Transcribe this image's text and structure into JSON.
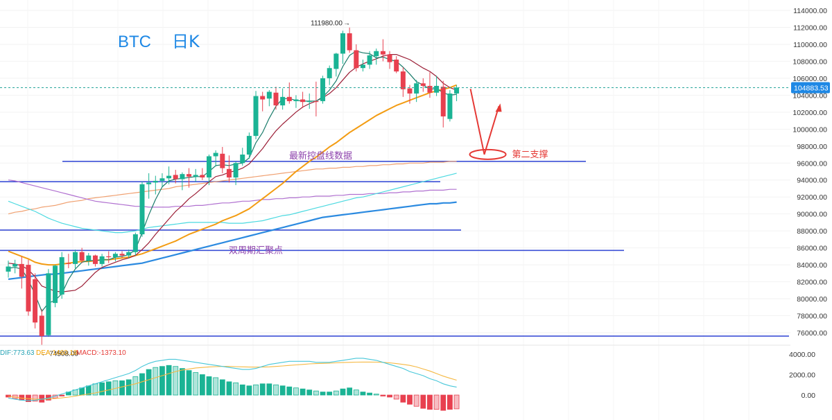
{
  "title": {
    "symbol": "BTC",
    "timeframe": "日K"
  },
  "colors": {
    "up": "#1ab394",
    "down": "#e8404f",
    "ma_short": "#1a7c6b",
    "ma_mid": "#9b1d35",
    "ma_orange": "#f39c12",
    "ma_light": "#f0a070",
    "ma_purple": "#b070d0",
    "ma_cyan": "#4ad9e0",
    "ma_blue": "#2b8ae0",
    "hline": "#3b4fd6",
    "support": "#e53935",
    "price_tag": "#1e88e5",
    "macd_dif": "#47c7d9",
    "macd_dea": "#f5b841"
  },
  "annotations": {
    "high_label": "111980.00",
    "low_label": "74508.00",
    "current_price": "104883.53",
    "support2": "第二支撑",
    "latest_control": "最新控盘线数据",
    "biweekly_cluster": "双周期汇聚点"
  },
  "macd": {
    "dif_label": "DIF:773.63",
    "dea_label": "DEA:1460.18",
    "macd_label": "MACD:-1373.10"
  },
  "chart_data": {
    "type": "candlestick",
    "y_axis": {
      "ticks": [
        114000,
        112000,
        110000,
        108000,
        106000,
        104000,
        102000,
        100000,
        98000,
        96000,
        94000,
        92000,
        90000,
        88000,
        86000,
        84000,
        82000,
        80000,
        78000,
        76000
      ],
      "range": [
        75000,
        115000
      ]
    },
    "macd_axis": {
      "ticks": [
        "4000.00",
        "2000.00",
        "0.00"
      ],
      "values": [
        4000,
        2000,
        0
      ],
      "range": [
        -1800,
        5000
      ]
    },
    "candles": [
      [
        83200,
        84500,
        82500,
        83800
      ],
      [
        83800,
        84600,
        83000,
        84100
      ],
      [
        84100,
        85000,
        81200,
        82600
      ],
      [
        84000,
        84600,
        78000,
        78500
      ],
      [
        82300,
        83000,
        76500,
        77200
      ],
      [
        78000,
        78800,
        74508,
        75600
      ],
      [
        75700,
        83500,
        75500,
        83000
      ],
      [
        79500,
        84000,
        79000,
        83900
      ],
      [
        80500,
        85500,
        80000,
        84900
      ],
      [
        84200,
        85300,
        83600,
        84100
      ],
      [
        84100,
        85800,
        83600,
        85500
      ],
      [
        85500,
        86000,
        84200,
        84500
      ],
      [
        84500,
        85400,
        83900,
        85100
      ],
      [
        85100,
        85200,
        83800,
        84100
      ],
      [
        84100,
        85300,
        83800,
        85000
      ],
      [
        85000,
        85600,
        84200,
        84900
      ],
      [
        84900,
        85500,
        84400,
        85300
      ],
      [
        85300,
        85600,
        84800,
        85100
      ],
      [
        85100,
        85800,
        84800,
        85500
      ],
      [
        85500,
        87800,
        85100,
        87600
      ],
      [
        87600,
        93800,
        87300,
        93500
      ],
      [
        93500,
        94800,
        91800,
        93700
      ],
      [
        93700,
        94500,
        92300,
        93900
      ],
      [
        93900,
        94800,
        93200,
        94200
      ],
      [
        94200,
        95600,
        93500,
        94500
      ],
      [
        94600,
        95200,
        93600,
        94100
      ],
      [
        94100,
        94900,
        92800,
        94700
      ],
      [
        94700,
        95400,
        93100,
        94400
      ],
      [
        94400,
        95300,
        93800,
        94600
      ],
      [
        94600,
        95400,
        94000,
        94300
      ],
      [
        94300,
        97000,
        93400,
        96800
      ],
      [
        96800,
        97500,
        95600,
        97200
      ],
      [
        97100,
        97900,
        94800,
        95400
      ],
      [
        95300,
        96900,
        93700,
        94300
      ],
      [
        94300,
        96200,
        93400,
        96000
      ],
      [
        96000,
        97800,
        95700,
        97000
      ],
      [
        97000,
        99600,
        96500,
        99200
      ],
      [
        99200,
        104500,
        98800,
        103900
      ],
      [
        103900,
        104400,
        102100,
        103500
      ],
      [
        103600,
        104600,
        102700,
        104400
      ],
      [
        104300,
        105000,
        102300,
        102800
      ],
      [
        102800,
        104800,
        102300,
        103800
      ],
      [
        103800,
        105500,
        103000,
        103300
      ],
      [
        103300,
        104000,
        102500,
        103500
      ],
      [
        103500,
        104400,
        102500,
        103200
      ],
      [
        103200,
        104200,
        102400,
        103300
      ],
      [
        103300,
        105600,
        101500,
        103200
      ],
      [
        103300,
        106300,
        103000,
        106000
      ],
      [
        106000,
        107500,
        105200,
        107200
      ],
      [
        107100,
        109000,
        106200,
        108900
      ],
      [
        108900,
        111600,
        107700,
        111300
      ],
      [
        111300,
        111980,
        109000,
        109300
      ],
      [
        109300,
        110000,
        106800,
        107200
      ],
      [
        107200,
        108200,
        106800,
        107600
      ],
      [
        107600,
        109200,
        107100,
        108700
      ],
      [
        108600,
        109500,
        107600,
        109200
      ],
      [
        109200,
        110600,
        108000,
        108800
      ],
      [
        108800,
        109200,
        107100,
        107900
      ],
      [
        108200,
        108600,
        106600,
        106800
      ],
      [
        106800,
        107300,
        103800,
        104700
      ],
      [
        104800,
        105200,
        103000,
        104200
      ],
      [
        104200,
        105800,
        103200,
        105400
      ],
      [
        105400,
        106000,
        104400,
        105100
      ],
      [
        105100,
        106700,
        103700,
        104300
      ],
      [
        104300,
        106300,
        103900,
        105100
      ],
      [
        105000,
        105700,
        100200,
        101500
      ],
      [
        101200,
        104600,
        100900,
        104200
      ],
      [
        104200,
        105200,
        103300,
        104900
      ]
    ],
    "ma_short": [
      83600,
      83700,
      83500,
      82200,
      80500,
      78500,
      79500,
      79800,
      80600,
      82300,
      83500,
      84300,
      84500,
      84500,
      84600,
      84600,
      84900,
      85000,
      85200,
      85800,
      87800,
      89900,
      91700,
      93200,
      93900,
      94100,
      94200,
      94300,
      94400,
      94400,
      95000,
      95700,
      95800,
      95700,
      95900,
      96000,
      96600,
      98400,
      99600,
      101300,
      102700,
      103600,
      103600,
      103400,
      103300,
      103300,
      103300,
      103800,
      104600,
      105700,
      107400,
      108700,
      109200,
      109000,
      108900,
      108400,
      108500,
      108200,
      108000,
      107300,
      106500,
      105600,
      105200,
      104700,
      104800,
      104300,
      104000,
      104100
    ],
    "ma_mid": [
      84200,
      84100,
      83900,
      83400,
      82600,
      81500,
      81200,
      80900,
      80800,
      80900,
      81000,
      81500,
      82300,
      83100,
      83700,
      84000,
      84300,
      84600,
      84800,
      85100,
      85800,
      86600,
      87600,
      88500,
      89400,
      90300,
      91000,
      91800,
      92400,
      93100,
      93800,
      94400,
      94600,
      94900,
      95100,
      95400,
      95900,
      96800,
      97700,
      98800,
      99800,
      100600,
      101300,
      102000,
      102600,
      103000,
      103300,
      103700,
      104200,
      104900,
      105800,
      106700,
      107300,
      107700,
      108000,
      108300,
      108600,
      108800,
      108800,
      108500,
      108200,
      107700,
      107200,
      106800,
      106200,
      105400,
      104900,
      104600
    ],
    "ma_orange": [
      85600,
      85300,
      85000,
      84700,
      84300,
      84100,
      84000,
      84000,
      84100,
      84200,
      84300,
      84400,
      84400,
      84500,
      84600,
      84600,
      84700,
      84800,
      84900,
      85100,
      85300,
      85600,
      85900,
      86200,
      86500,
      86800,
      87200,
      87600,
      87900,
      88200,
      88500,
      88800,
      89200,
      89500,
      89800,
      90200,
      90600,
      91200,
      91800,
      92400,
      93000,
      93600,
      94300,
      95000,
      95600,
      96200,
      96700,
      97300,
      97900,
      98400,
      99000,
      99600,
      100100,
      100600,
      101100,
      101600,
      102000,
      102400,
      102800,
      103100,
      103400,
      103700,
      104000,
      104300,
      104500,
      104700,
      104900,
      105200
    ],
    "ma_light": [
      90000,
      90200,
      90300,
      90500,
      90600,
      90800,
      90900,
      91000,
      91200,
      91400,
      91500,
      91600,
      91800,
      91900,
      92000,
      92100,
      92200,
      92300,
      92400,
      92500,
      92600,
      92700,
      92800,
      92900,
      93000,
      93200,
      93300,
      93400,
      93500,
      93600,
      93700,
      93800,
      93900,
      94000,
      94100,
      94200,
      94300,
      94400,
      94500,
      94600,
      94700,
      94800,
      94900,
      95000,
      95100,
      95200,
      95300,
      95300,
      95400,
      95400,
      95500,
      95500,
      95600,
      95600,
      95700,
      95700,
      95800,
      95800,
      95900,
      95900,
      96000,
      96000,
      96000,
      96100,
      96100,
      96100,
      96200,
      96200
    ],
    "ma_purple": [
      94000,
      93900,
      93700,
      93500,
      93300,
      93100,
      92900,
      92700,
      92500,
      92300,
      92100,
      91900,
      91700,
      91500,
      91400,
      91300,
      91200,
      91100,
      91000,
      90900,
      90900,
      90800,
      90800,
      90800,
      90800,
      90900,
      90900,
      90900,
      91000,
      91000,
      91100,
      91200,
      91300,
      91300,
      91400,
      91500,
      91500,
      91600,
      91700,
      91700,
      91800,
      91800,
      91900,
      91900,
      92000,
      92000,
      92100,
      92100,
      92100,
      92200,
      92200,
      92300,
      92300,
      92300,
      92400,
      92400,
      92400,
      92500,
      92500,
      92600,
      92600,
      92700,
      92700,
      92800,
      92800,
      92800,
      92900,
      92900
    ],
    "ma_cyan": [
      91500,
      91200,
      90900,
      90600,
      90300,
      89900,
      89500,
      89200,
      88900,
      88700,
      88500,
      88300,
      88200,
      88100,
      88000,
      87900,
      87800,
      87800,
      87900,
      88000,
      88200,
      88400,
      88500,
      88600,
      88700,
      88800,
      88900,
      89000,
      89000,
      89000,
      89000,
      89000,
      89000,
      88900,
      88900,
      88900,
      89000,
      89100,
      89200,
      89400,
      89600,
      89800,
      89900,
      90100,
      90300,
      90500,
      90700,
      90900,
      91100,
      91300,
      91500,
      91700,
      91900,
      92000,
      92200,
      92400,
      92600,
      92800,
      93000,
      93200,
      93400,
      93600,
      93800,
      94000,
      94200,
      94400,
      94600,
      94800
    ],
    "ma_blue": [
      82300,
      82400,
      82500,
      82600,
      82700,
      82800,
      82900,
      82900,
      83000,
      83100,
      83200,
      83300,
      83400,
      83500,
      83600,
      83700,
      83800,
      83900,
      84000,
      84100,
      84200,
      84400,
      84600,
      84800,
      85000,
      85200,
      85400,
      85600,
      85800,
      86000,
      86200,
      86400,
      86600,
      86800,
      87000,
      87200,
      87400,
      87600,
      87800,
      88000,
      88200,
      88400,
      88600,
      88800,
      89000,
      89200,
      89400,
      89600,
      89700,
      89800,
      89900,
      90000,
      90100,
      90200,
      90300,
      90400,
      90500,
      90600,
      90700,
      90800,
      90900,
      91000,
      91100,
      91200,
      91200,
      91300,
      91300,
      91400
    ],
    "hlines": [
      96200,
      93800,
      88100,
      85700,
      75600
    ],
    "macd_hist": [
      -200,
      -350,
      -500,
      -650,
      -600,
      -700,
      -500,
      -300,
      -100,
      300,
      500,
      700,
      900,
      1100,
      1200,
      1300,
      1400,
      1400,
      1500,
      1800,
      2100,
      2500,
      2700,
      2800,
      2900,
      2800,
      2600,
      2400,
      2200,
      2000,
      1800,
      1700,
      1500,
      1300,
      1200,
      1000,
      900,
      1000,
      1100,
      1100,
      1000,
      900,
      800,
      700,
      600,
      500,
      400,
      300,
      300,
      400,
      600,
      700,
      500,
      300,
      200,
      100,
      -100,
      -200,
      -400,
      -700,
      -900,
      -1100,
      -1300,
      -1400,
      -1400,
      -1500,
      -1400,
      -1350
    ],
    "macd_dif": [
      -300,
      -400,
      -500,
      -550,
      -500,
      -400,
      -300,
      -100,
      100,
      300,
      500,
      700,
      900,
      1100,
      1300,
      1500,
      1700,
      1900,
      2100,
      2400,
      2800,
      3100,
      3300,
      3400,
      3500,
      3500,
      3400,
      3300,
      3200,
      3100,
      3000,
      2900,
      2800,
      2700,
      2600,
      2500,
      2500,
      2600,
      2800,
      3000,
      3100,
      3200,
      3300,
      3300,
      3300,
      3300,
      3200,
      3200,
      3200,
      3300,
      3400,
      3500,
      3600,
      3600,
      3500,
      3400,
      3200,
      3000,
      2800,
      2600,
      2300,
      2100,
      1900,
      1600,
      1400,
      1100,
      900,
      774
    ],
    "macd_dea": [
      -100,
      -200,
      -300,
      -350,
      -400,
      -400,
      -380,
      -340,
      -280,
      -200,
      -100,
      0,
      100,
      200,
      350,
      500,
      650,
      800,
      950,
      1100,
      1300,
      1500,
      1700,
      1900,
      2100,
      2300,
      2450,
      2550,
      2650,
      2700,
      2750,
      2780,
      2800,
      2800,
      2780,
      2760,
      2740,
      2730,
      2740,
      2760,
      2800,
      2850,
      2900,
      2950,
      3000,
      3050,
      3080,
      3100,
      3120,
      3150,
      3180,
      3200,
      3220,
      3230,
      3230,
      3220,
      3200,
      3150,
      3080,
      3000,
      2900,
      2750,
      2550,
      2350,
      2100,
      1850,
      1650,
      1460
    ]
  }
}
